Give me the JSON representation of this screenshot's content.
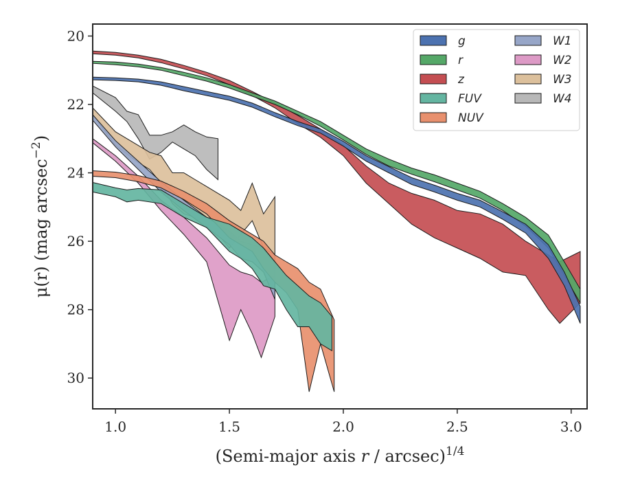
{
  "chart_data": {
    "type": "area",
    "title": "",
    "xlabel": "(Semi-major axis r / arcsec)",
    "xlabel_italic_part": "r",
    "xlabel_superscript": "1/4",
    "ylabel": "μ(r) (mag arcsec",
    "ylabel_superscript": "−2",
    "ylabel_suffix": ")",
    "xlim": [
      0.9,
      3.07
    ],
    "ylim": [
      30.9,
      19.65
    ],
    "y_inverted": true,
    "xticks": [
      {
        "value": 1.0,
        "label": "1.0"
      },
      {
        "value": 1.5,
        "label": "1.5"
      },
      {
        "value": 2.0,
        "label": "2.0"
      },
      {
        "value": 2.5,
        "label": "2.5"
      },
      {
        "value": 3.0,
        "label": "3.0"
      }
    ],
    "yticks": [
      {
        "value": 20,
        "label": "20"
      },
      {
        "value": 22,
        "label": "22"
      },
      {
        "value": 24,
        "label": "24"
      },
      {
        "value": 26,
        "label": "26"
      },
      {
        "value": 28,
        "label": "28"
      },
      {
        "value": 30,
        "label": "30"
      }
    ],
    "grid": false,
    "legend": {
      "placement": "top-right",
      "columns": 2
    },
    "series": [
      {
        "name": "g",
        "color": "#4c72b0",
        "points": [
          [
            0.9,
            21.2,
            21.28
          ],
          [
            1.0,
            21.22,
            21.3
          ],
          [
            1.1,
            21.26,
            21.34
          ],
          [
            1.2,
            21.34,
            21.44
          ],
          [
            1.3,
            21.48,
            21.6
          ],
          [
            1.4,
            21.62,
            21.74
          ],
          [
            1.5,
            21.76,
            21.88
          ],
          [
            1.6,
            21.96,
            22.08
          ],
          [
            1.7,
            22.24,
            22.36
          ],
          [
            1.8,
            22.5,
            22.62
          ],
          [
            1.9,
            22.72,
            22.84
          ],
          [
            2.0,
            23.08,
            23.22
          ],
          [
            2.1,
            23.5,
            23.66
          ],
          [
            2.2,
            23.82,
            24.0
          ],
          [
            2.3,
            24.14,
            24.34
          ],
          [
            2.4,
            24.36,
            24.56
          ],
          [
            2.5,
            24.6,
            24.8
          ],
          [
            2.6,
            24.8,
            25.0
          ],
          [
            2.7,
            25.14,
            25.36
          ],
          [
            2.8,
            25.5,
            25.76
          ],
          [
            2.9,
            26.1,
            26.5
          ],
          [
            2.97,
            26.9,
            27.3
          ],
          [
            3.04,
            27.9,
            28.4
          ]
        ]
      },
      {
        "name": "r",
        "color": "#55a868",
        "points": [
          [
            0.9,
            20.74,
            20.8
          ],
          [
            1.0,
            20.76,
            20.84
          ],
          [
            1.1,
            20.82,
            20.9
          ],
          [
            1.2,
            20.92,
            21.0
          ],
          [
            1.3,
            21.06,
            21.16
          ],
          [
            1.4,
            21.22,
            21.32
          ],
          [
            1.5,
            21.42,
            21.52
          ],
          [
            1.6,
            21.66,
            21.76
          ],
          [
            1.7,
            21.9,
            22.0
          ],
          [
            1.8,
            22.2,
            22.3
          ],
          [
            1.9,
            22.5,
            22.64
          ],
          [
            2.0,
            22.9,
            23.04
          ],
          [
            2.1,
            23.3,
            23.46
          ],
          [
            2.2,
            23.6,
            23.8
          ],
          [
            2.3,
            23.86,
            24.04
          ],
          [
            2.4,
            24.06,
            24.26
          ],
          [
            2.5,
            24.3,
            24.5
          ],
          [
            2.6,
            24.54,
            24.74
          ],
          [
            2.7,
            24.9,
            25.1
          ],
          [
            2.8,
            25.3,
            25.56
          ],
          [
            2.9,
            25.82,
            26.2
          ],
          [
            2.97,
            26.6,
            27.0
          ],
          [
            3.04,
            27.4,
            27.8
          ]
        ]
      },
      {
        "name": "z",
        "color": "#c44e52",
        "points": [
          [
            0.9,
            20.44,
            20.52
          ],
          [
            1.0,
            20.48,
            20.56
          ],
          [
            1.1,
            20.56,
            20.64
          ],
          [
            1.2,
            20.68,
            20.78
          ],
          [
            1.3,
            20.86,
            20.96
          ],
          [
            1.4,
            21.06,
            21.16
          ],
          [
            1.5,
            21.3,
            21.42
          ],
          [
            1.6,
            21.62,
            21.74
          ],
          [
            1.7,
            21.96,
            22.1
          ],
          [
            1.8,
            22.32,
            22.56
          ],
          [
            1.9,
            22.72,
            22.96
          ],
          [
            2.0,
            23.2,
            23.5
          ],
          [
            2.1,
            23.8,
            24.3
          ],
          [
            2.2,
            24.3,
            24.9
          ],
          [
            2.3,
            24.6,
            25.5
          ],
          [
            2.4,
            24.8,
            25.9
          ],
          [
            2.5,
            25.1,
            26.2
          ],
          [
            2.6,
            25.2,
            26.5
          ],
          [
            2.7,
            25.5,
            26.9
          ],
          [
            2.8,
            26.0,
            27.0
          ],
          [
            2.9,
            26.4,
            28.0
          ],
          [
            2.95,
            26.6,
            28.4
          ],
          [
            3.04,
            26.3,
            27.8
          ]
        ]
      },
      {
        "name": "FUV",
        "color": "#64b5a1",
        "points": [
          [
            0.9,
            24.28,
            24.56
          ],
          [
            1.0,
            24.44,
            24.7
          ],
          [
            1.05,
            24.5,
            24.85
          ],
          [
            1.1,
            24.46,
            24.8
          ],
          [
            1.2,
            24.5,
            24.9
          ],
          [
            1.3,
            24.9,
            25.3
          ],
          [
            1.4,
            25.3,
            25.6
          ],
          [
            1.5,
            25.5,
            26.3
          ],
          [
            1.55,
            25.7,
            26.5
          ],
          [
            1.6,
            25.9,
            26.8
          ],
          [
            1.65,
            26.2,
            27.3
          ],
          [
            1.7,
            26.6,
            27.4
          ],
          [
            1.75,
            27.0,
            28.0
          ],
          [
            1.8,
            27.3,
            28.5
          ],
          [
            1.85,
            27.6,
            28.5
          ],
          [
            1.9,
            27.8,
            29.0
          ],
          [
            1.95,
            28.2,
            29.2
          ]
        ]
      },
      {
        "name": "NUV",
        "color": "#e8906e",
        "points": [
          [
            0.9,
            23.94,
            24.1
          ],
          [
            1.0,
            23.98,
            24.14
          ],
          [
            1.1,
            24.08,
            24.26
          ],
          [
            1.2,
            24.24,
            24.44
          ],
          [
            1.3,
            24.54,
            24.78
          ],
          [
            1.4,
            24.9,
            25.2
          ],
          [
            1.5,
            25.4,
            25.9
          ],
          [
            1.55,
            25.6,
            26.1
          ],
          [
            1.6,
            25.8,
            26.3
          ],
          [
            1.65,
            26.0,
            26.8
          ],
          [
            1.7,
            26.4,
            27.2
          ],
          [
            1.75,
            26.6,
            27.5
          ],
          [
            1.8,
            26.8,
            28.0
          ],
          [
            1.85,
            27.2,
            30.4
          ],
          [
            1.9,
            27.4,
            29.0
          ],
          [
            1.96,
            28.3,
            30.4
          ]
        ]
      },
      {
        "name": "W1",
        "color": "#97a6c8",
        "points": [
          [
            0.9,
            22.3,
            22.46
          ],
          [
            1.0,
            23.06,
            23.24
          ],
          [
            1.1,
            23.66,
            23.9
          ],
          [
            1.2,
            24.26,
            24.56
          ],
          [
            1.3,
            24.8,
            25.1
          ],
          [
            1.4,
            25.3,
            25.6
          ],
          [
            1.5,
            25.7,
            26.1
          ],
          [
            1.55,
            26.0,
            26.5
          ],
          [
            1.6,
            26.1,
            26.6
          ],
          [
            1.65,
            26.2,
            26.9
          ],
          [
            1.7,
            26.4,
            27.7
          ]
        ]
      },
      {
        "name": "W2",
        "color": "#dd9ac6",
        "points": [
          [
            0.9,
            23.0,
            23.12
          ],
          [
            1.0,
            23.5,
            23.66
          ],
          [
            1.1,
            24.1,
            24.3
          ],
          [
            1.2,
            24.8,
            25.1
          ],
          [
            1.3,
            25.3,
            25.8
          ],
          [
            1.4,
            25.9,
            26.6
          ],
          [
            1.5,
            26.7,
            28.9
          ],
          [
            1.55,
            26.9,
            28.0
          ],
          [
            1.6,
            27.0,
            28.7
          ],
          [
            1.64,
            27.2,
            29.4
          ],
          [
            1.7,
            27.0,
            28.2
          ]
        ]
      },
      {
        "name": "W3",
        "color": "#dcc09c",
        "points": [
          [
            0.9,
            22.1,
            22.3
          ],
          [
            1.0,
            22.8,
            23.2
          ],
          [
            1.1,
            23.2,
            23.7
          ],
          [
            1.15,
            23.4,
            23.9
          ],
          [
            1.2,
            23.5,
            24.3
          ],
          [
            1.25,
            24.0,
            24.9
          ],
          [
            1.3,
            24.0,
            25.2
          ],
          [
            1.35,
            24.2,
            25.3
          ],
          [
            1.4,
            24.4,
            25.6
          ],
          [
            1.45,
            24.6,
            25.8
          ],
          [
            1.5,
            24.8,
            26.2
          ],
          [
            1.55,
            25.1,
            25.8
          ],
          [
            1.6,
            24.3,
            25.4
          ],
          [
            1.65,
            25.2,
            26.2
          ],
          [
            1.7,
            24.7,
            26.4
          ]
        ]
      },
      {
        "name": "W4",
        "color": "#b8b8b8",
        "points": [
          [
            0.9,
            21.46,
            21.66
          ],
          [
            1.0,
            21.8,
            22.2
          ],
          [
            1.05,
            22.2,
            22.5
          ],
          [
            1.1,
            22.3,
            23.0
          ],
          [
            1.15,
            22.9,
            23.6
          ],
          [
            1.2,
            22.9,
            23.4
          ],
          [
            1.25,
            22.8,
            23.1
          ],
          [
            1.3,
            22.6,
            23.3
          ],
          [
            1.35,
            22.8,
            23.5
          ],
          [
            1.4,
            22.95,
            23.9
          ],
          [
            1.45,
            23.0,
            24.2
          ]
        ]
      }
    ]
  }
}
